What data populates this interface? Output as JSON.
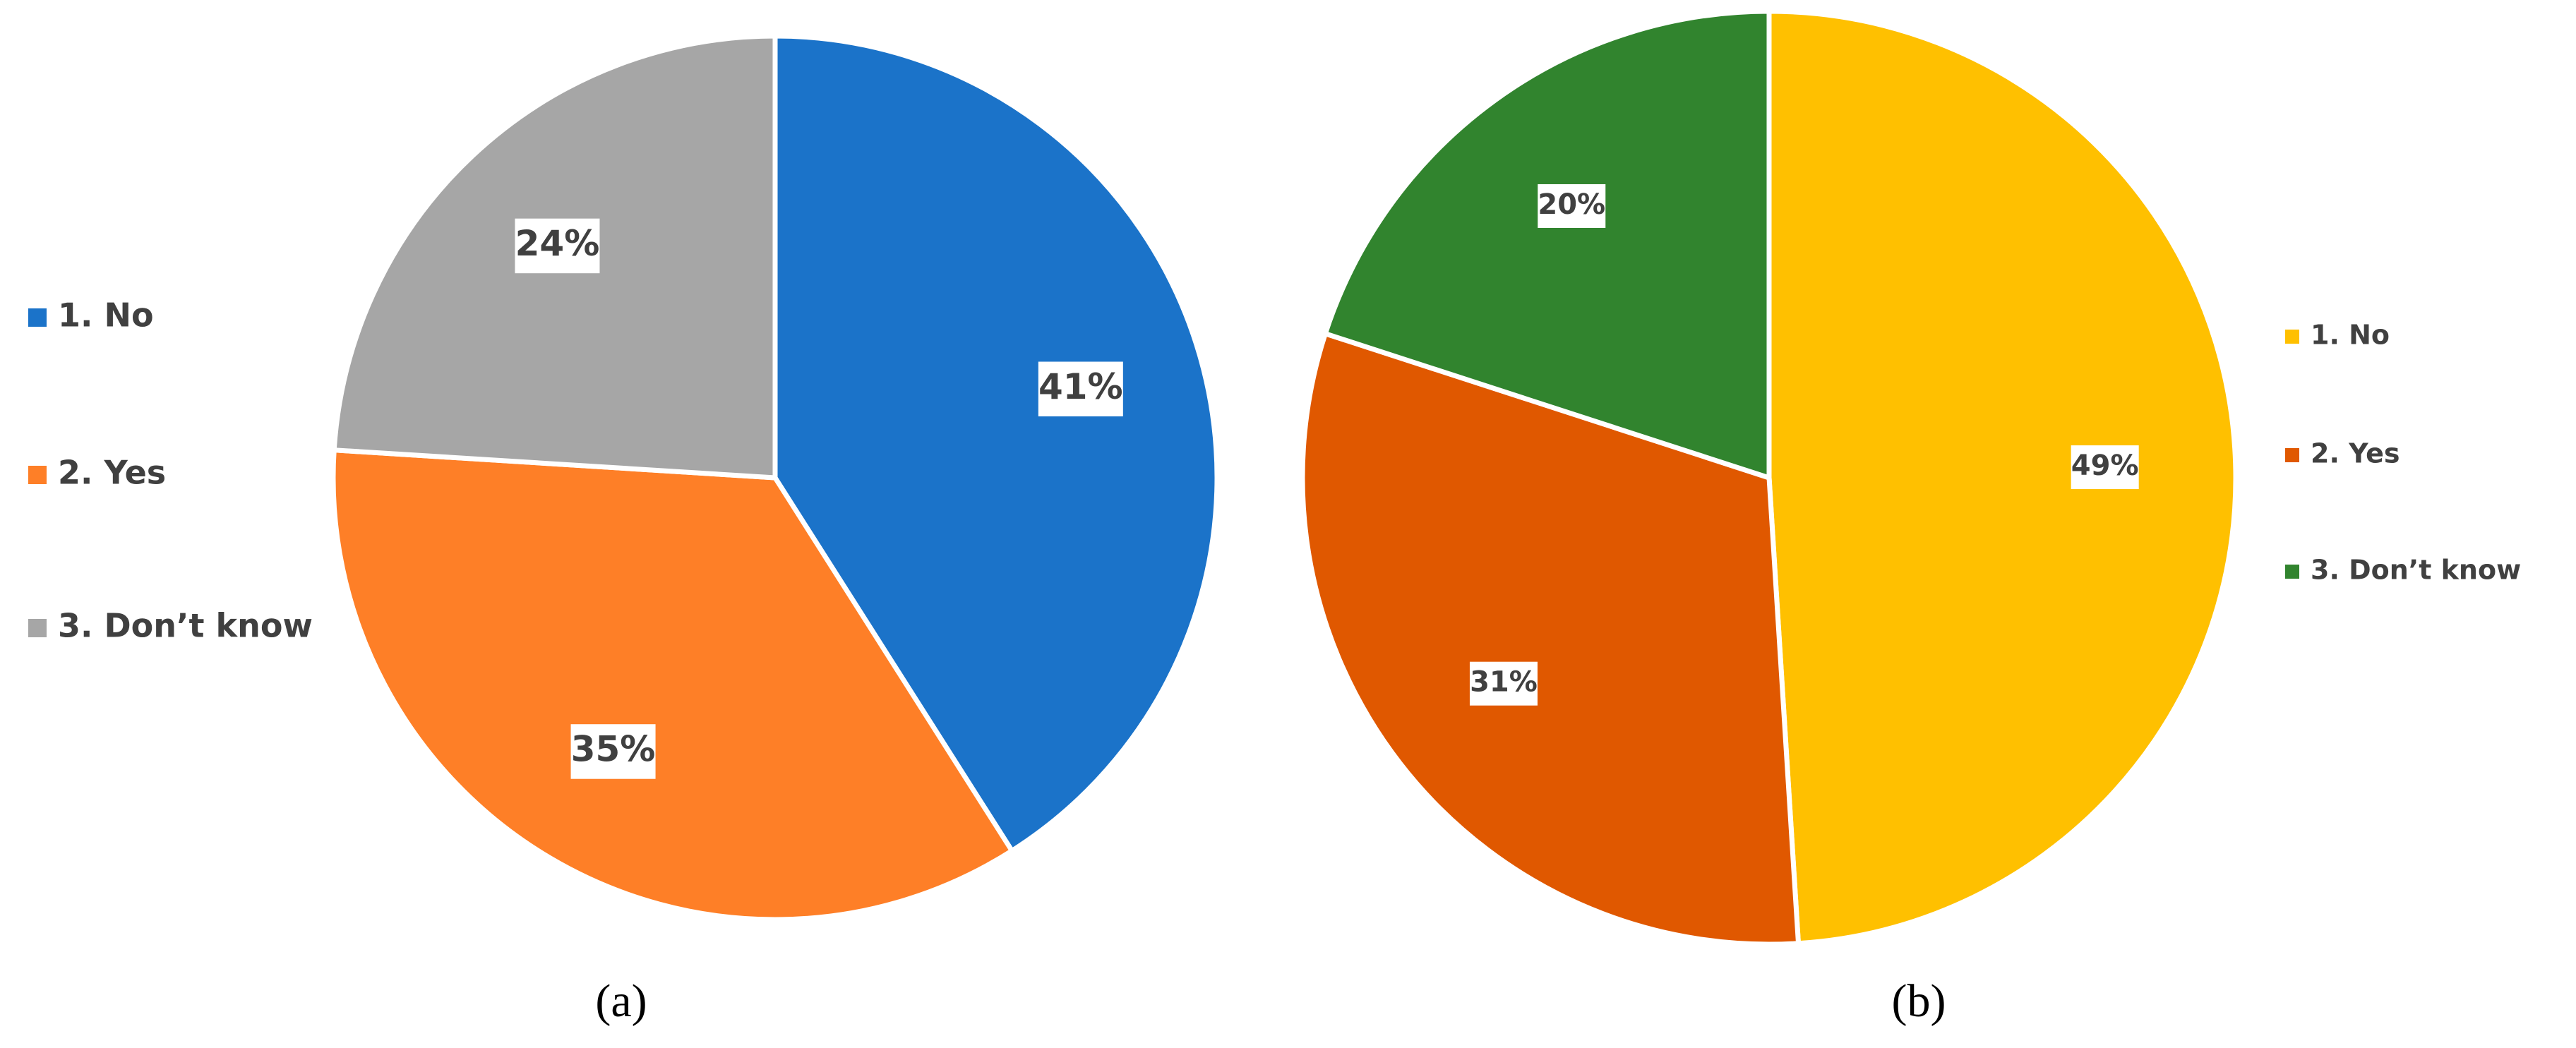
{
  "chart_data": [
    {
      "type": "pie",
      "caption": "(a)",
      "legend": "left",
      "categories": [
        "1. No",
        "2. Yes",
        "3. Don’t know"
      ],
      "values": [
        41,
        35,
        24
      ],
      "value_labels": [
        "41%",
        "35%",
        "24%"
      ],
      "colors": [
        "#1b73c9",
        "#fe7f27",
        "#a6a6a6"
      ]
    },
    {
      "type": "pie",
      "caption": "(b)",
      "legend": "right",
      "categories": [
        "1. No",
        "2. Yes",
        "3. Don’t know"
      ],
      "values": [
        49,
        31,
        20
      ],
      "value_labels": [
        "49%",
        "31%",
        "20%"
      ],
      "colors": [
        "#ffc000",
        "#e05800",
        "#31842e"
      ]
    }
  ]
}
